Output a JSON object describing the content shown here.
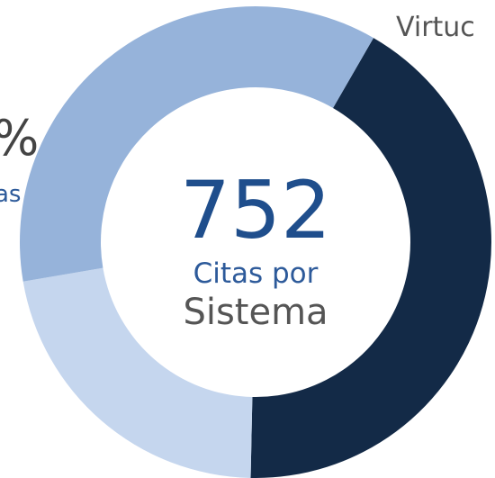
{
  "chart_data": {
    "type": "donut",
    "values": [
      42,
      22,
      36
    ],
    "colors": [
      "#132a47",
      "#c5d6ee",
      "#96b3da"
    ],
    "start_angle": 30,
    "center_value": 752,
    "center_label": [
      "Citas por",
      "Sistema"
    ],
    "annotations": [
      "Virtuc",
      "%",
      "as"
    ]
  }
}
